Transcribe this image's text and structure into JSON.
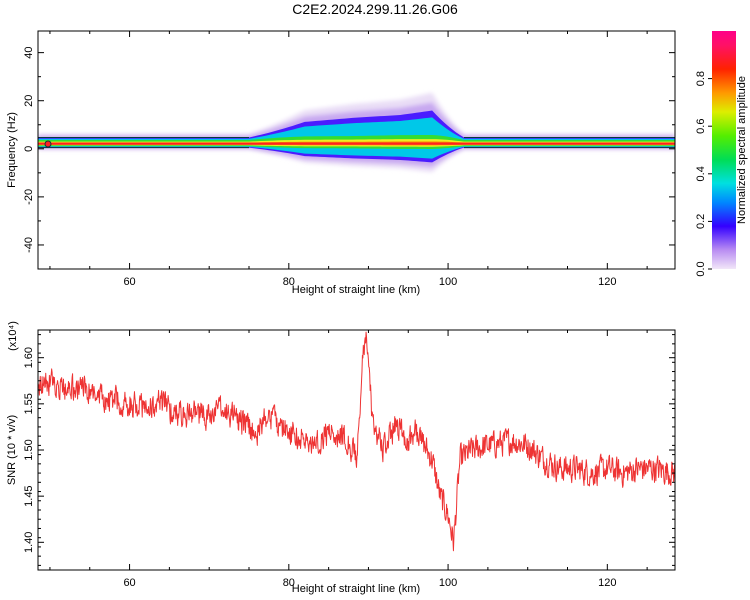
{
  "title": "C2E2.2024.299.11.26.G06",
  "colors": {
    "snr_line": "#ee3333",
    "axis": "#000000",
    "spectrogram_background": "#ffffff"
  },
  "chart_data": [
    {
      "type": "heatmap",
      "name": "spectrogram",
      "xlabel": "Height of straight line (km)",
      "ylabel": "Frequency (Hz)",
      "xlim": [
        48.5,
        128.5
      ],
      "ylim": [
        -50,
        49
      ],
      "xticks": [
        60,
        80,
        100,
        120
      ],
      "yticks": [
        -40,
        -20,
        0,
        20,
        40
      ],
      "grid": false,
      "colorbar": {
        "label": "Normalized spectral amplitude",
        "range": [
          0.0,
          1.0
        ],
        "ticks": [
          0.0,
          0.2,
          0.4,
          0.6,
          0.8
        ],
        "colormap": "rainbow (violet to magenta)"
      },
      "trace": {
        "frequency_hz": 2,
        "band": [
          {
            "x": 48.5,
            "half_width_hz": 1.6,
            "amplitude": 1.0
          },
          {
            "x": 75,
            "half_width_hz": 1.6,
            "amplitude": 1.0
          },
          {
            "x": 82,
            "half_width_hz": 4.0,
            "amplitude": 0.75
          },
          {
            "x": 88,
            "half_width_hz": 4.5,
            "amplitude": 0.7
          },
          {
            "x": 94,
            "half_width_hz": 5.0,
            "amplitude": 0.7
          },
          {
            "x": 98,
            "half_width_hz": 5.5,
            "amplitude": 0.65
          },
          {
            "x": 101,
            "half_width_hz": 2.5,
            "amplitude": 0.9
          },
          {
            "x": 102,
            "half_width_hz": 1.6,
            "amplitude": 1.0
          },
          {
            "x": 128.5,
            "half_width_hz": 1.6,
            "amplitude": 1.0
          }
        ]
      }
    },
    {
      "type": "line",
      "name": "snr",
      "xlabel": "Height of straight line (km)",
      "ylabel": "SNR (10 * v/v)",
      "y_multiplier": "(x10⁴)",
      "xlim": [
        48.5,
        128.5
      ],
      "ylim": [
        1.37,
        1.63
      ],
      "xticks": [
        60,
        80,
        100,
        120
      ],
      "yticks": [
        1.4,
        1.45,
        1.5,
        1.55,
        1.6
      ],
      "ytick_labels": [
        "1.40",
        "1.45",
        "1.50",
        "1.55",
        "1.60"
      ],
      "grid": false,
      "series": [
        {
          "x": [
            48.5,
            50,
            52,
            54,
            56,
            58,
            60,
            62,
            64,
            66,
            68,
            70,
            72,
            74,
            76,
            77.5,
            79,
            81,
            83,
            85,
            87,
            88.5,
            89.3,
            89.8,
            90.5,
            92,
            93.5,
            95,
            96,
            98,
            99,
            100,
            100.7,
            101.5,
            103,
            105,
            108,
            110,
            112,
            114,
            116,
            118,
            120,
            122,
            124,
            126,
            128.5
          ],
          "y": [
            1.57,
            1.575,
            1.565,
            1.57,
            1.555,
            1.555,
            1.55,
            1.545,
            1.55,
            1.54,
            1.54,
            1.535,
            1.545,
            1.53,
            1.52,
            1.54,
            1.525,
            1.515,
            1.505,
            1.52,
            1.515,
            1.49,
            1.6,
            1.62,
            1.53,
            1.5,
            1.53,
            1.51,
            1.52,
            1.49,
            1.45,
            1.43,
            1.4,
            1.49,
            1.5,
            1.505,
            1.51,
            1.505,
            1.49,
            1.48,
            1.48,
            1.475,
            1.48,
            1.475,
            1.48,
            1.48,
            1.475
          ],
          "noise_amplitude": 0.02
        }
      ]
    }
  ]
}
